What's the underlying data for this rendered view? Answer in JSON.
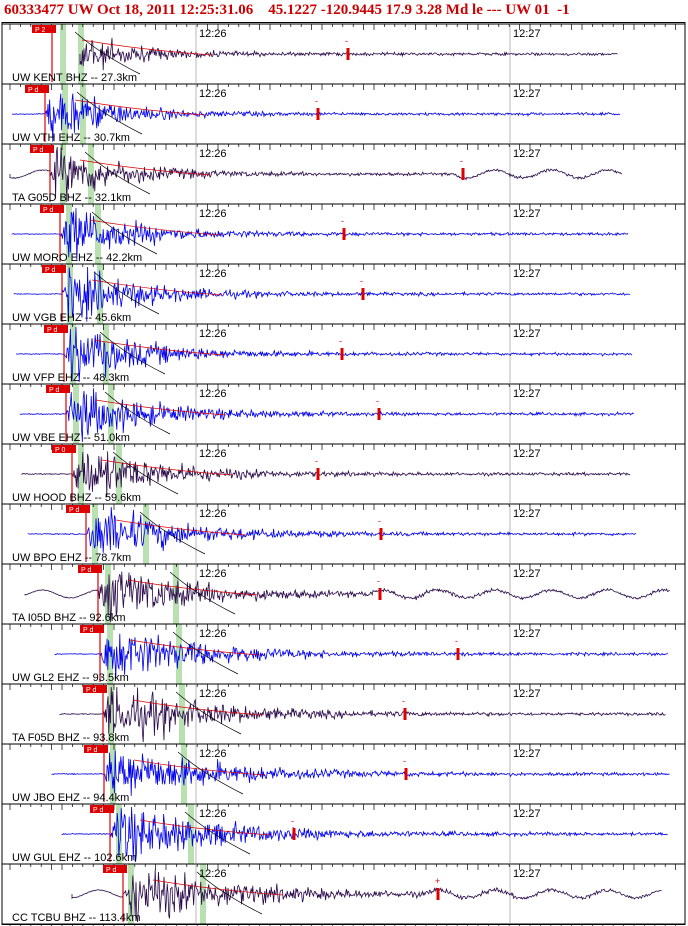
{
  "header": {
    "event_id": "60333477",
    "network": "UW",
    "datetime": "Oct 18, 2011 12:25:31.06",
    "latitude": "45.1227",
    "longitude": "-120.9445",
    "depth": "17.9",
    "magnitude": "3.28",
    "mag_type": "Md",
    "qual": "le",
    "dashes": "---",
    "agency": "UW",
    "version": "01",
    "flag": "-1",
    "text": "60333477 UW Oct 18, 2011 12:25:31.06    45.1227 -120.9445 17.9 3.28 Md le --- UW 01  -1"
  },
  "time_marks": [
    "12:26",
    "12:27"
  ],
  "colors": {
    "blue_trace": "#0000ee",
    "dark_trace": "#2a0a4a",
    "pick_red": "#dd0000",
    "green_band": "#b8e0b0",
    "header_red": "#cc0000"
  },
  "traces": [
    {
      "label": "UW KENT BHZ -- 27.3km",
      "pick": "P 2",
      "color": "dark",
      "end_mark": "-"
    },
    {
      "label": "UW VTH EHZ -- 30.7km",
      "pick": "P d",
      "color": "blue",
      "end_mark": "-"
    },
    {
      "label": "TA G05D BHZ -- 32.1km",
      "pick": "P d",
      "color": "dark",
      "end_mark": "-"
    },
    {
      "label": "UW MORO EHZ -- 42.2km",
      "pick": "P d",
      "color": "blue",
      "end_mark": "-"
    },
    {
      "label": "UW VGB EHZ -- 45.6km",
      "pick": "P d",
      "color": "blue",
      "end_mark": "-"
    },
    {
      "label": "UW VFP EHZ -- 48.3km",
      "pick": "P d",
      "color": "blue",
      "end_mark": "-"
    },
    {
      "label": "UW VBE EHZ -- 51.0km",
      "pick": "P d",
      "color": "blue",
      "end_mark": "-"
    },
    {
      "label": "UW HOOD BHZ -- 59.6km",
      "pick": "P 0",
      "color": "dark",
      "end_mark": "-"
    },
    {
      "label": "UW BPO EHZ -- 78.7km",
      "pick": "P d",
      "color": "blue",
      "end_mark": "-"
    },
    {
      "label": "TA I05D BHZ -- 92.6km",
      "pick": "P d",
      "color": "dark",
      "end_mark": "-"
    },
    {
      "label": "UW GL2 EHZ -- 93.5km",
      "pick": "P d",
      "color": "blue",
      "end_mark": "-"
    },
    {
      "label": "TA F05D BHZ -- 93.8km",
      "pick": "P d",
      "color": "dark",
      "end_mark": "-"
    },
    {
      "label": "UW JBO EHZ -- 94.4km",
      "pick": "P d",
      "color": "blue",
      "end_mark": "-"
    },
    {
      "label": "UW GUL EHZ -- 102.6km",
      "pick": "P d",
      "color": "blue",
      "end_mark": "-"
    },
    {
      "label": "CC TCBU BHZ -- 113.4km",
      "pick": "P d",
      "color": "dark",
      "end_mark": "+"
    }
  ]
}
